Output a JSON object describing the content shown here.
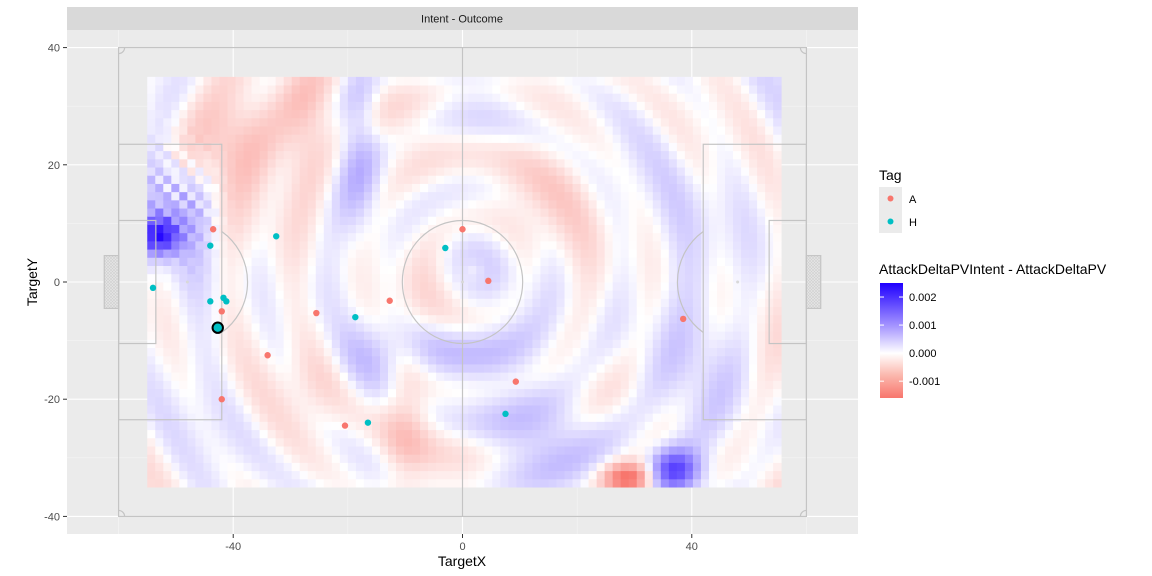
{
  "chart_data": {
    "type": "scatter",
    "facet_title": "Intent - Outcome",
    "xlabel": "TargetX",
    "ylabel": "TargetY",
    "xlim": [
      -69,
      69
    ],
    "ylim": [
      -43,
      43
    ],
    "x_ticks": [
      -40,
      0,
      40
    ],
    "y_ticks": [
      -40,
      -20,
      0,
      20,
      40
    ],
    "grid": true,
    "pitch": {
      "x_range": [
        -60,
        60
      ],
      "y_range": [
        -40,
        40
      ],
      "penalty_box_depth": 18,
      "penalty_box_half_width": 23.5,
      "six_yard_depth": 6.5,
      "six_yard_half_width": 10.5,
      "centre_circle_radius": 10.5,
      "penalty_spot_distance": 12,
      "goal_depth": 2.5,
      "goal_half_width": 4.5
    },
    "heatmap": {
      "x_range": [
        -55,
        55
      ],
      "y_range": [
        -35,
        35
      ],
      "color_low": "#f8766d",
      "color_mid": "#ffffff",
      "color_high": "#1f00ff",
      "value_range": [
        -0.0015,
        0.0025
      ]
    },
    "legend": {
      "placement": "right",
      "tag_title": "Tag",
      "tag_entries": [
        {
          "label": "A",
          "color": "#f8766d"
        },
        {
          "label": "H",
          "color": "#00bfc4"
        }
      ],
      "fill_title": "AttackDeltaPVIntent - AttackDeltaPV",
      "fill_ticks": [
        {
          "value": 0.002,
          "label": "0.002"
        },
        {
          "value": 0.001,
          "label": "0.001"
        },
        {
          "value": 0.0,
          "label": "0.000"
        },
        {
          "value": -0.001,
          "label": "-0.001"
        }
      ],
      "fill_range": [
        -0.0016,
        0.0025
      ]
    },
    "series": [
      {
        "name": "A",
        "color": "#f8766d",
        "points": [
          [
            -43.5,
            9
          ],
          [
            -42,
            -5
          ],
          [
            -42,
            -20
          ],
          [
            -34,
            -12.5
          ],
          [
            -25.5,
            -5.3
          ],
          [
            -20.5,
            -24.5
          ],
          [
            -12.7,
            -3.2
          ],
          [
            0,
            9
          ],
          [
            4.5,
            0.2
          ],
          [
            9.3,
            -17
          ],
          [
            38.5,
            -6.3
          ]
        ]
      },
      {
        "name": "H",
        "color": "#00bfc4",
        "points": [
          [
            -54,
            -1
          ],
          [
            -44,
            6.2
          ],
          [
            -44,
            -3.3
          ],
          [
            -41.7,
            -2.7
          ],
          [
            -41.2,
            -3.3
          ],
          [
            -32.5,
            7.8
          ],
          [
            -18.7,
            -6
          ],
          [
            -16.5,
            -24
          ],
          [
            -3,
            5.8
          ],
          [
            7.5,
            -22.5
          ]
        ]
      }
    ],
    "highlight_point": [
      -42.7,
      -7.8
    ]
  }
}
